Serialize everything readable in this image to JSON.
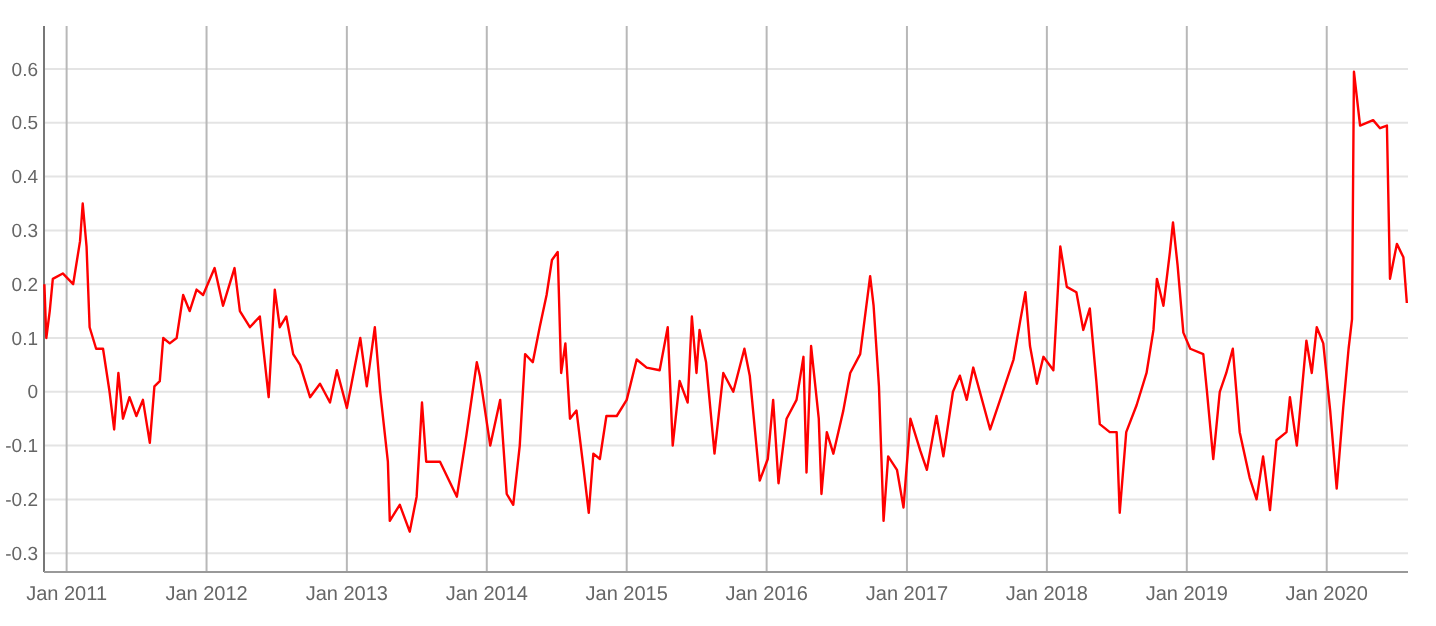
{
  "chart_data": {
    "type": "line",
    "xlim": [
      "2010-11-03",
      "2020-07-31"
    ],
    "ylim": [
      -0.335,
      0.68
    ],
    "xticks": [
      {
        "value": "2011-01-01",
        "label": "Jan 2011"
      },
      {
        "value": "2012-01-01",
        "label": "Jan 2012"
      },
      {
        "value": "2013-01-01",
        "label": "Jan 2013"
      },
      {
        "value": "2014-01-01",
        "label": "Jan 2014"
      },
      {
        "value": "2015-01-01",
        "label": "Jan 2015"
      },
      {
        "value": "2016-01-01",
        "label": "Jan 2016"
      },
      {
        "value": "2017-01-01",
        "label": "Jan 2017"
      },
      {
        "value": "2018-01-01",
        "label": "Jan 2018"
      },
      {
        "value": "2019-01-01",
        "label": "Jan 2019"
      },
      {
        "value": "2020-01-01",
        "label": "Jan 2020"
      }
    ],
    "yticks": [
      -0.3,
      -0.2,
      -0.1,
      0,
      0.1,
      0.2,
      0.3,
      0.4,
      0.5,
      0.6
    ],
    "grid": true,
    "marker": "none",
    "line_style": "solid",
    "series": [
      {
        "color": "#ff0000",
        "x": [
          "2010-11-04",
          "2010-11-09",
          "2010-11-18",
          "2010-11-26",
          "2010-12-22",
          "2011-01-18",
          "2011-02-05",
          "2011-02-12",
          "2011-02-22",
          "2011-03-02",
          "2011-03-19",
          "2011-04-06",
          "2011-04-23",
          "2011-05-05",
          "2011-05-16",
          "2011-05-28",
          "2011-06-14",
          "2011-07-02",
          "2011-07-19",
          "2011-08-06",
          "2011-08-18",
          "2011-09-01",
          "2011-09-10",
          "2011-09-27",
          "2011-10-15",
          "2011-11-01",
          "2011-11-18",
          "2011-12-06",
          "2011-12-23",
          "2012-01-22",
          "2012-02-13",
          "2012-03-14",
          "2012-03-28",
          "2012-04-23",
          "2012-05-19",
          "2012-06-11",
          "2012-06-27",
          "2012-07-10",
          "2012-07-27",
          "2012-08-14",
          "2012-09-01",
          "2012-09-27",
          "2012-10-23",
          "2012-11-18",
          "2012-12-06",
          "2013-01-01",
          "2013-02-05",
          "2013-02-22",
          "2013-03-15",
          "2013-03-29",
          "2013-04-18",
          "2013-04-23",
          "2013-05-19",
          "2013-06-14",
          "2013-07-02",
          "2013-07-16",
          "2013-07-27",
          "2013-09-01",
          "2013-10-15",
          "2013-11-09",
          "2013-12-06",
          "2013-12-14",
          "2014-01-10",
          "2014-02-05",
          "2014-02-22",
          "2014-03-11",
          "2014-03-28",
          "2014-04-11",
          "2014-05-01",
          "2014-05-19",
          "2014-06-06",
          "2014-06-20",
          "2014-07-05",
          "2014-07-14",
          "2014-07-25",
          "2014-08-06",
          "2014-08-23",
          "2014-09-10",
          "2014-09-24",
          "2014-10-06",
          "2014-10-23",
          "2014-11-09",
          "2014-12-06",
          "2015-01-01",
          "2015-01-27",
          "2015-02-22",
          "2015-03-28",
          "2015-04-18",
          "2015-05-01",
          "2015-05-19",
          "2015-06-09",
          "2015-06-20",
          "2015-07-02",
          "2015-07-10",
          "2015-07-27",
          "2015-08-18",
          "2015-09-10",
          "2015-10-06",
          "2015-11-04",
          "2015-11-18",
          "2015-12-14",
          "2016-01-04",
          "2016-01-18",
          "2016-02-01",
          "2016-02-22",
          "2016-03-19",
          "2016-04-06",
          "2016-04-14",
          "2016-04-26",
          "2016-05-16",
          "2016-05-23",
          "2016-06-06",
          "2016-06-23",
          "2016-07-19",
          "2016-08-06",
          "2016-09-01",
          "2016-09-27",
          "2016-10-06",
          "2016-10-20",
          "2016-11-01",
          "2016-11-13",
          "2016-12-06",
          "2016-12-23",
          "2017-01-10",
          "2017-02-05",
          "2017-02-22",
          "2017-03-19",
          "2017-04-06",
          "2017-05-01",
          "2017-05-19",
          "2017-06-06",
          "2017-06-23",
          "2017-08-06",
          "2017-09-01",
          "2017-10-06",
          "2017-10-23",
          "2017-11-06",
          "2017-11-18",
          "2017-12-06",
          "2017-12-23",
          "2018-01-18",
          "2018-02-05",
          "2018-02-22",
          "2018-03-19",
          "2018-04-06",
          "2018-04-23",
          "2018-05-10",
          "2018-05-19",
          "2018-06-14",
          "2018-07-02",
          "2018-07-10",
          "2018-07-27",
          "2018-08-23",
          "2018-09-18",
          "2018-10-06",
          "2018-10-15",
          "2018-11-01",
          "2018-11-18",
          "2018-11-26",
          "2018-12-08",
          "2018-12-23",
          "2019-01-10",
          "2019-02-13",
          "2019-02-22",
          "2019-03-11",
          "2019-03-28",
          "2019-04-14",
          "2019-05-01",
          "2019-05-19",
          "2019-06-14",
          "2019-07-02",
          "2019-07-19",
          "2019-08-06",
          "2019-08-23",
          "2019-09-18",
          "2019-09-27",
          "2019-10-15",
          "2019-11-09",
          "2019-11-23",
          "2019-12-06",
          "2019-12-23",
          "2020-01-10",
          "2020-01-27",
          "2020-02-13",
          "2020-02-27",
          "2020-03-07",
          "2020-03-12",
          "2020-03-28",
          "2020-05-01",
          "2020-05-19",
          "2020-06-06",
          "2020-06-14",
          "2020-07-02",
          "2020-07-19",
          "2020-07-28"
        ],
        "values": [
          0.2,
          0.1,
          0.15,
          0.21,
          0.22,
          0.2,
          0.28,
          0.35,
          0.27,
          0.12,
          0.08,
          0.08,
          0,
          -0.07,
          0.035,
          -0.05,
          -0.01,
          -0.045,
          -0.015,
          -0.095,
          0.01,
          0.02,
          0.1,
          0.09,
          0.1,
          0.18,
          0.15,
          0.19,
          0.18,
          0.23,
          0.16,
          0.23,
          0.15,
          0.12,
          0.14,
          -0.01,
          0.19,
          0.12,
          0.14,
          0.07,
          0.05,
          -0.01,
          0.015,
          -0.02,
          0.04,
          -0.03,
          0.1,
          0.01,
          0.12,
          0,
          -0.13,
          -0.24,
          -0.21,
          -0.26,
          -0.195,
          -0.02,
          -0.13,
          -0.13,
          -0.195,
          -0.08,
          0.055,
          0.03,
          -0.1,
          -0.015,
          -0.19,
          -0.21,
          -0.1,
          0.07,
          0.055,
          0.12,
          0.18,
          0.245,
          0.26,
          0.035,
          0.09,
          -0.05,
          -0.035,
          -0.14,
          -0.225,
          -0.115,
          -0.125,
          -0.045,
          -0.045,
          -0.015,
          0.06,
          0.045,
          0.04,
          0.12,
          -0.1,
          0.02,
          -0.02,
          0.14,
          0.035,
          0.115,
          0.055,
          -0.115,
          0.035,
          0,
          0.08,
          0.03,
          -0.165,
          -0.125,
          -0.015,
          -0.17,
          -0.05,
          -0.015,
          0.065,
          -0.15,
          0.085,
          -0.05,
          -0.19,
          -0.075,
          -0.115,
          -0.035,
          0.035,
          0.07,
          0.215,
          0.16,
          0.01,
          -0.24,
          -0.12,
          -0.145,
          -0.215,
          -0.05,
          -0.11,
          -0.145,
          -0.045,
          -0.12,
          0,
          0.03,
          -0.015,
          0.045,
          -0.07,
          -0.015,
          0.06,
          0.13,
          0.185,
          0.085,
          0.015,
          0.065,
          0.04,
          0.27,
          0.195,
          0.185,
          0.115,
          0.155,
          0.02,
          -0.06,
          -0.075,
          -0.075,
          -0.225,
          -0.075,
          -0.025,
          0.035,
          0.115,
          0.21,
          0.16,
          0.26,
          0.315,
          0.235,
          0.11,
          0.08,
          0.07,
          0.005,
          -0.125,
          0,
          0.035,
          0.08,
          -0.075,
          -0.16,
          -0.2,
          -0.12,
          -0.22,
          -0.09,
          -0.075,
          -0.01,
          -0.1,
          0.095,
          0.035,
          0.12,
          0.09,
          -0.035,
          -0.18,
          -0.03,
          0.08,
          0.135,
          0.595,
          0.495,
          0.505,
          0.49,
          0.495,
          0.21,
          0.275,
          0.25,
          0.165
        ]
      }
    ]
  }
}
